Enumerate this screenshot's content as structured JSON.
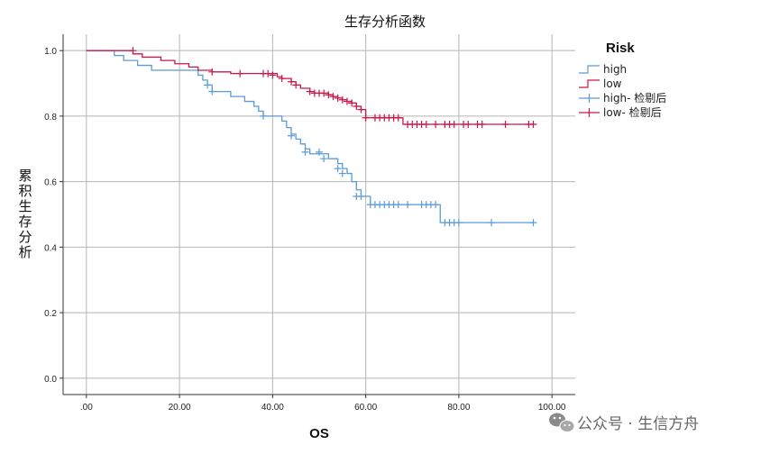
{
  "chart_data": {
    "type": "line",
    "title": "生存分析函数",
    "xlabel": "OS",
    "ylabel": "累积生存分析",
    "xlim": [
      -5,
      105
    ],
    "ylim": [
      -0.05,
      1.05
    ],
    "x_ticks": [
      ".00",
      "20.00",
      "40.00",
      "60.00",
      "80.00",
      "100.00"
    ],
    "x_tick_values": [
      0,
      20,
      40,
      60,
      80,
      100
    ],
    "y_ticks": [
      "0.0",
      "0.2",
      "0.4",
      "0.6",
      "0.8",
      "1.0"
    ],
    "y_tick_values": [
      0,
      0.2,
      0.4,
      0.6,
      0.8,
      1.0
    ],
    "grid": true,
    "legend": {
      "title": "Risk",
      "position": "right",
      "entries": [
        "high",
        "low",
        "high- 检剔后",
        "low- 检剔后"
      ]
    },
    "series": [
      {
        "name": "high",
        "color": "#5b9bd5",
        "steps": [
          [
            0,
            1.0
          ],
          [
            6,
            0.985
          ],
          [
            8,
            0.97
          ],
          [
            11,
            0.955
          ],
          [
            14,
            0.94
          ],
          [
            24,
            0.925
          ],
          [
            25,
            0.91
          ],
          [
            26,
            0.895
          ],
          [
            27,
            0.875
          ],
          [
            31,
            0.86
          ],
          [
            34,
            0.845
          ],
          [
            36,
            0.83
          ],
          [
            37,
            0.815
          ],
          [
            38,
            0.8
          ],
          [
            42,
            0.785
          ],
          [
            43,
            0.765
          ],
          [
            44,
            0.745
          ],
          [
            45,
            0.73
          ],
          [
            46,
            0.715
          ],
          [
            47,
            0.7
          ],
          [
            48,
            0.685
          ],
          [
            52,
            0.67
          ],
          [
            54,
            0.655
          ],
          [
            55,
            0.64
          ],
          [
            56,
            0.625
          ],
          [
            57,
            0.6
          ],
          [
            58,
            0.575
          ],
          [
            59,
            0.555
          ],
          [
            61,
            0.53
          ],
          [
            76,
            0.475
          ],
          [
            96,
            0.475
          ]
        ],
        "censored": [
          [
            26,
            0.895
          ],
          [
            27,
            0.875
          ],
          [
            38,
            0.8
          ],
          [
            44,
            0.74
          ],
          [
            47,
            0.69
          ],
          [
            50,
            0.69
          ],
          [
            51,
            0.67
          ],
          [
            54,
            0.64
          ],
          [
            55,
            0.625
          ],
          [
            58,
            0.555
          ],
          [
            59,
            0.555
          ],
          [
            61,
            0.53
          ],
          [
            62,
            0.53
          ],
          [
            63,
            0.53
          ],
          [
            64,
            0.53
          ],
          [
            65,
            0.53
          ],
          [
            66,
            0.53
          ],
          [
            67,
            0.53
          ],
          [
            69,
            0.53
          ],
          [
            72,
            0.53
          ],
          [
            73,
            0.53
          ],
          [
            74,
            0.53
          ],
          [
            75,
            0.53
          ],
          [
            77,
            0.475
          ],
          [
            78,
            0.475
          ],
          [
            79,
            0.475
          ],
          [
            80,
            0.475
          ],
          [
            87,
            0.475
          ],
          [
            96,
            0.475
          ]
        ]
      },
      {
        "name": "low",
        "color": "#c8174a",
        "steps": [
          [
            0,
            1.0
          ],
          [
            10,
            0.99
          ],
          [
            12,
            0.98
          ],
          [
            16,
            0.97
          ],
          [
            19,
            0.96
          ],
          [
            22,
            0.95
          ],
          [
            24,
            0.94
          ],
          [
            27,
            0.935
          ],
          [
            31,
            0.93
          ],
          [
            41,
            0.92
          ],
          [
            42,
            0.915
          ],
          [
            44,
            0.905
          ],
          [
            45,
            0.895
          ],
          [
            46,
            0.885
          ],
          [
            48,
            0.875
          ],
          [
            49,
            0.87
          ],
          [
            52,
            0.865
          ],
          [
            53,
            0.86
          ],
          [
            54,
            0.855
          ],
          [
            55,
            0.85
          ],
          [
            56,
            0.845
          ],
          [
            57,
            0.84
          ],
          [
            58,
            0.83
          ],
          [
            59,
            0.82
          ],
          [
            60,
            0.795
          ],
          [
            68,
            0.775
          ],
          [
            96,
            0.775
          ]
        ],
        "censored": [
          [
            10,
            1.0
          ],
          [
            27,
            0.935
          ],
          [
            33,
            0.93
          ],
          [
            38,
            0.93
          ],
          [
            39,
            0.93
          ],
          [
            40,
            0.925
          ],
          [
            42,
            0.915
          ],
          [
            44,
            0.905
          ],
          [
            45,
            0.895
          ],
          [
            48,
            0.875
          ],
          [
            49,
            0.87
          ],
          [
            50,
            0.87
          ],
          [
            51,
            0.87
          ],
          [
            52,
            0.865
          ],
          [
            53,
            0.86
          ],
          [
            54,
            0.855
          ],
          [
            55,
            0.85
          ],
          [
            56,
            0.845
          ],
          [
            57,
            0.84
          ],
          [
            58,
            0.83
          ],
          [
            59,
            0.82
          ],
          [
            60,
            0.795
          ],
          [
            62,
            0.795
          ],
          [
            63,
            0.795
          ],
          [
            64,
            0.795
          ],
          [
            65,
            0.795
          ],
          [
            66,
            0.795
          ],
          [
            67,
            0.795
          ],
          [
            69,
            0.775
          ],
          [
            70,
            0.775
          ],
          [
            71,
            0.775
          ],
          [
            72,
            0.775
          ],
          [
            73,
            0.775
          ],
          [
            75,
            0.775
          ],
          [
            77,
            0.775
          ],
          [
            78,
            0.775
          ],
          [
            79,
            0.775
          ],
          [
            81,
            0.775
          ],
          [
            82,
            0.775
          ],
          [
            84,
            0.775
          ],
          [
            85,
            0.775
          ],
          [
            90,
            0.775
          ],
          [
            95,
            0.775
          ],
          [
            96,
            0.775
          ]
        ]
      }
    ]
  },
  "watermark": {
    "icon": "wechat-icon",
    "text": "公众号 · 生信方舟"
  }
}
